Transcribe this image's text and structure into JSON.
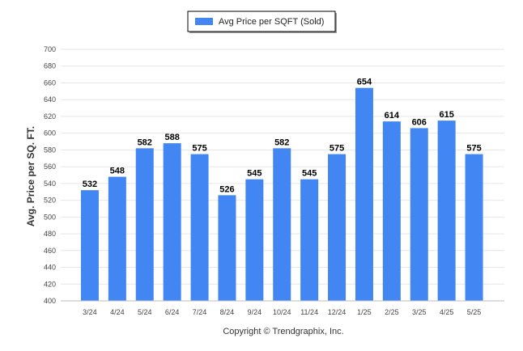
{
  "chart_data": {
    "type": "bar",
    "categories": [
      "3/24",
      "4/24",
      "5/24",
      "6/24",
      "7/24",
      "8/24",
      "9/24",
      "10/24",
      "11/24",
      "12/24",
      "1/25",
      "2/25",
      "3/25",
      "4/25",
      "5/25"
    ],
    "series": [
      {
        "name": "Avg Price per SQFT (Sold)",
        "values": [
          532,
          548,
          582,
          588,
          575,
          526,
          545,
          582,
          545,
          575,
          654,
          614,
          606,
          615,
          575
        ]
      }
    ],
    "ylabel": "Avg. Price per SQ. FT.",
    "xlabel": "",
    "ylim": [
      400,
      700
    ],
    "yticks": [
      400,
      420,
      440,
      460,
      480,
      500,
      520,
      540,
      560,
      580,
      600,
      620,
      640,
      660,
      680,
      700
    ],
    "grid": true,
    "legend_position": "top-center",
    "bar_color": "#4286f4"
  },
  "footer": {
    "copyright": "Copyright © Trendgraphix, Inc."
  }
}
